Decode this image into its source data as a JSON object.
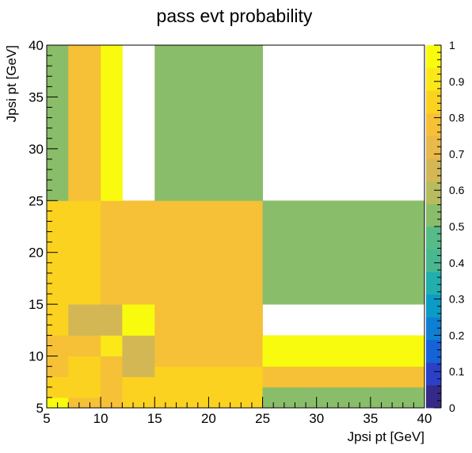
{
  "chart_data": {
    "type": "heatmap",
    "title": "pass evt probability",
    "xlabel": "Jpsi pt [GeV]",
    "ylabel": "Jpsi pt [GeV]",
    "xlim": [
      5,
      40
    ],
    "ylim": [
      5,
      40
    ],
    "zlim": [
      0,
      1
    ],
    "x_bin_edges": [
      5,
      7,
      10,
      12,
      15,
      25,
      40
    ],
    "y_bin_edges": [
      5,
      6,
      7,
      8,
      9,
      10,
      11,
      12,
      13,
      14,
      15,
      16,
      17,
      18,
      19,
      20,
      21,
      22,
      23,
      24,
      25,
      40
    ],
    "values": [
      [
        0.95,
        0.8,
        0.75,
        0.85,
        0.85,
        0.5
      ],
      [
        0.85,
        0.85,
        0.8,
        0.85,
        0.85,
        0.5
      ],
      [
        0.85,
        0.85,
        0.8,
        0.85,
        0.85,
        0.8
      ],
      [
        0.8,
        0.85,
        0.8,
        0.65,
        0.85,
        0.8
      ],
      [
        0.8,
        0.85,
        0.8,
        0.65,
        0.8,
        0.95
      ],
      [
        0.75,
        0.8,
        0.9,
        0.65,
        0.8,
        0.95
      ],
      [
        0.75,
        0.8,
        0.9,
        0.65,
        0.8,
        0.95
      ],
      [
        0.85,
        0.65,
        0.65,
        0.95,
        0.75,
        null
      ],
      [
        0.85,
        0.65,
        0.65,
        0.95,
        0.75,
        null
      ],
      [
        0.85,
        0.65,
        0.65,
        0.95,
        0.75,
        null
      ],
      [
        0.85,
        0.85,
        0.8,
        0.75,
        0.75,
        0.5
      ],
      [
        0.85,
        0.85,
        0.8,
        0.75,
        0.75,
        0.5
      ],
      [
        0.85,
        0.85,
        0.8,
        0.75,
        0.75,
        0.5
      ],
      [
        0.85,
        0.85,
        0.8,
        0.75,
        0.75,
        0.5
      ],
      [
        0.85,
        0.85,
        0.8,
        0.75,
        0.75,
        0.5
      ],
      [
        0.85,
        0.85,
        0.8,
        0.75,
        0.75,
        0.5
      ],
      [
        0.85,
        0.85,
        0.8,
        0.75,
        0.75,
        0.5
      ],
      [
        0.85,
        0.85,
        0.8,
        0.75,
        0.75,
        0.5
      ],
      [
        0.85,
        0.85,
        0.8,
        0.75,
        0.75,
        0.5
      ],
      [
        0.85,
        0.85,
        0.8,
        0.75,
        0.75,
        0.5
      ],
      [
        0.5,
        0.8,
        0.95,
        null,
        0.5,
        null
      ]
    ],
    "x_ticks": [
      5,
      10,
      15,
      20,
      25,
      30,
      35,
      40
    ],
    "y_ticks": [
      5,
      10,
      15,
      20,
      25,
      30,
      35,
      40
    ],
    "z_ticks": [
      "0",
      "0.1",
      "0.2",
      "0.3",
      "0.4",
      "0.5",
      "0.6",
      "0.7",
      "0.8",
      "0.9",
      "1"
    ],
    "palette": [
      "#352a87",
      "#2b40c7",
      "#1563d6",
      "#0f7fd4",
      "#0a9bc7",
      "#21aeac",
      "#48b890",
      "#57bb88",
      "#8abd6a",
      "#b7bc5f",
      "#d4b755",
      "#e9b94a",
      "#f6c037",
      "#fbd21f",
      "#fbe818",
      "#f9fb0e"
    ],
    "grid": false
  }
}
